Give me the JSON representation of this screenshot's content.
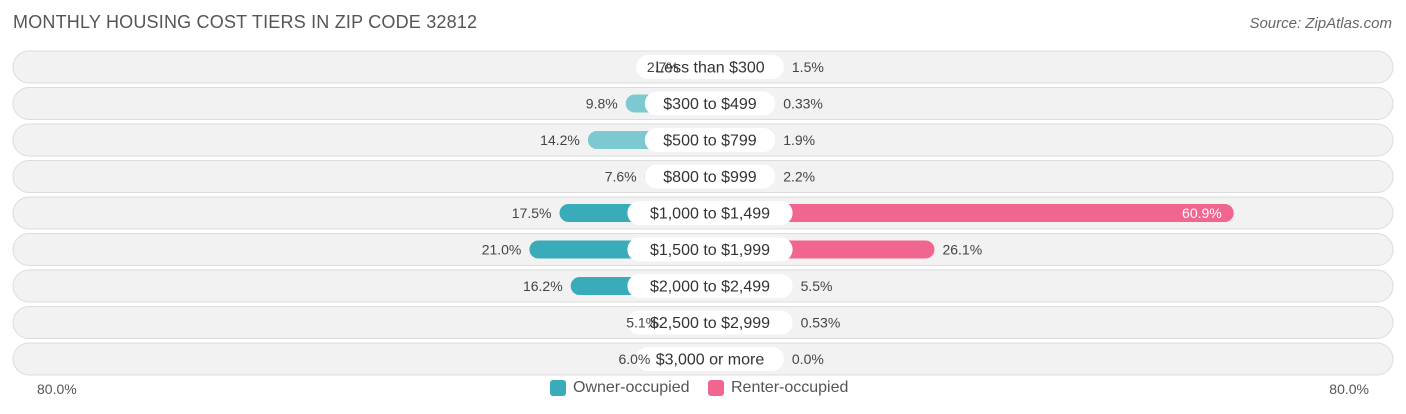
{
  "title": "MONTHLY HOUSING COST TIERS IN ZIP CODE 32812",
  "source": "Source: ZipAtlas.com",
  "colors": {
    "owner": "#3aabb9",
    "owner_light": "#7cc9d2",
    "renter": "#f0668f",
    "renter_light": "#f6a6bf",
    "row_bg": "#f2f2f2",
    "row_border": "#dcdcdc"
  },
  "chart_data": {
    "type": "bar",
    "orientation": "horizontal-diverging",
    "categories": [
      "Less than $300",
      "$300 to $499",
      "$500 to $799",
      "$800 to $999",
      "$1,000 to $1,499",
      "$1,500 to $1,999",
      "$2,000 to $2,499",
      "$2,500 to $2,999",
      "$3,000 or more"
    ],
    "series": [
      {
        "name": "Owner-occupied",
        "values": [
          2.7,
          9.8,
          14.2,
          7.6,
          17.5,
          21.0,
          16.2,
          5.1,
          6.0
        ],
        "labels": [
          "2.7%",
          "9.8%",
          "14.2%",
          "7.6%",
          "17.5%",
          "21.0%",
          "16.2%",
          "5.1%",
          "6.0%"
        ]
      },
      {
        "name": "Renter-occupied",
        "values": [
          1.5,
          0.33,
          1.9,
          2.2,
          60.9,
          26.1,
          5.5,
          0.53,
          0.0
        ],
        "labels": [
          "1.5%",
          "0.33%",
          "1.9%",
          "2.2%",
          "60.9%",
          "26.1%",
          "5.5%",
          "0.53%",
          "0.0%"
        ]
      }
    ],
    "xlim": [
      -80,
      80
    ],
    "axis_left_label": "80.0%",
    "axis_right_label": "80.0%",
    "legend_position": "bottom-center"
  }
}
